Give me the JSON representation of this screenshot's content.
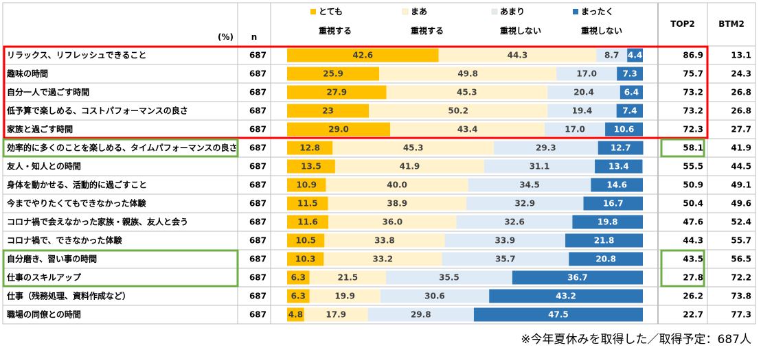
{
  "chart_data": {
    "type": "bar",
    "stacked": true,
    "orientation": "horizontal",
    "unit_label": "(%)",
    "n_header": "n",
    "top2_header": "TOP2",
    "btm2_header": "BTM2",
    "categories": [
      "リラックス、リフレッシュできること",
      "趣味の時間",
      "自分一人で過ごす時間",
      "低予算で楽しめる、コストパフォーマンスの良さ",
      "家族と過ごす時間",
      "効率的に多くのことを楽しめる、タイムパフォーマンスの良さ",
      "友人・知人との時間",
      "身体を動かせる、活動的に過ごすこと",
      "今までやりたくてもできなかった体験",
      "コロナ禍で会えなかった家族・親族、友人と会う",
      "コロナ禍で、できなかった体験",
      "自分磨き、習い事の時間",
      "仕事のスキルアップ",
      "仕事（残務処理、資料作成など）",
      "職場の同僚との時間"
    ],
    "n": [
      "687",
      "687",
      "687",
      "687",
      "687",
      "687",
      "687",
      "687",
      "687",
      "687",
      "687",
      "687",
      "687",
      "687",
      "687"
    ],
    "series": [
      {
        "name": "とても\n重視する",
        "color": "#ffc000",
        "values": [
          42.6,
          25.9,
          27.9,
          23,
          29.0,
          12.8,
          13.5,
          10.9,
          11.5,
          11.6,
          10.5,
          10.3,
          6.3,
          6.3,
          4.8
        ],
        "labels": [
          "42.6",
          "25.9",
          "27.9",
          "23",
          "29.0",
          "12.8",
          "13.5",
          "10.9",
          "11.5",
          "11.6",
          "10.5",
          "10.3",
          "6.3",
          "6.3",
          "4.8"
        ]
      },
      {
        "name": "まあ\n重視する",
        "color": "#fff2cc",
        "values": [
          44.3,
          49.8,
          45.3,
          50.2,
          43.4,
          45.3,
          41.9,
          40.0,
          38.9,
          36.0,
          33.8,
          33.2,
          21.5,
          19.9,
          17.9
        ],
        "labels": [
          "44.3",
          "49.8",
          "45.3",
          "50.2",
          "43.4",
          "45.3",
          "41.9",
          "40.0",
          "38.9",
          "36.0",
          "33.8",
          "33.2",
          "21.5",
          "19.9",
          "17.9"
        ]
      },
      {
        "name": "あまり\n重視しない",
        "color": "#deebf7",
        "values": [
          8.7,
          17.0,
          20.4,
          19.4,
          17.0,
          29.3,
          31.1,
          34.5,
          32.9,
          32.6,
          33.9,
          35.7,
          35.5,
          30.6,
          29.8
        ],
        "labels": [
          "8.7",
          "17.0",
          "20.4",
          "19.4",
          "17.0",
          "29.3",
          "31.1",
          "34.5",
          "32.9",
          "32.6",
          "33.9",
          "35.7",
          "35.5",
          "30.6",
          "29.8"
        ]
      },
      {
        "name": "まったく\n重視しない",
        "color": "#2e75b6",
        "values": [
          4.4,
          7.3,
          6.4,
          7.4,
          10.6,
          12.7,
          13.4,
          14.6,
          16.7,
          19.8,
          21.8,
          20.8,
          36.7,
          43.2,
          47.5
        ],
        "labels": [
          "4.4",
          "7.3",
          "6.4",
          "7.4",
          "10.6",
          "12.7",
          "13.4",
          "14.6",
          "16.7",
          "19.8",
          "21.8",
          "20.8",
          "36.7",
          "43.2",
          "47.5"
        ]
      }
    ],
    "top2": [
      "86.9",
      "75.7",
      "73.2",
      "73.2",
      "72.3",
      "58.1",
      "55.5",
      "50.9",
      "50.4",
      "47.6",
      "44.3",
      "43.5",
      "27.8",
      "26.2",
      "22.7"
    ],
    "btm2": [
      "13.1",
      "24.3",
      "26.8",
      "26.8",
      "27.7",
      "41.9",
      "44.5",
      "49.1",
      "49.6",
      "52.4",
      "55.7",
      "56.5",
      "72.2",
      "73.8",
      "77.3"
    ],
    "highlight_colors": {
      "red": "#ff0000",
      "green": "#70ad47"
    },
    "red_highlight_rows": [
      0,
      4
    ],
    "green_highlight_groups": [
      [
        5,
        5
      ],
      [
        11,
        12
      ]
    ],
    "xlim": [
      0,
      100
    ]
  },
  "footnote": "※今年夏休みを取得した／取得予定：687人"
}
